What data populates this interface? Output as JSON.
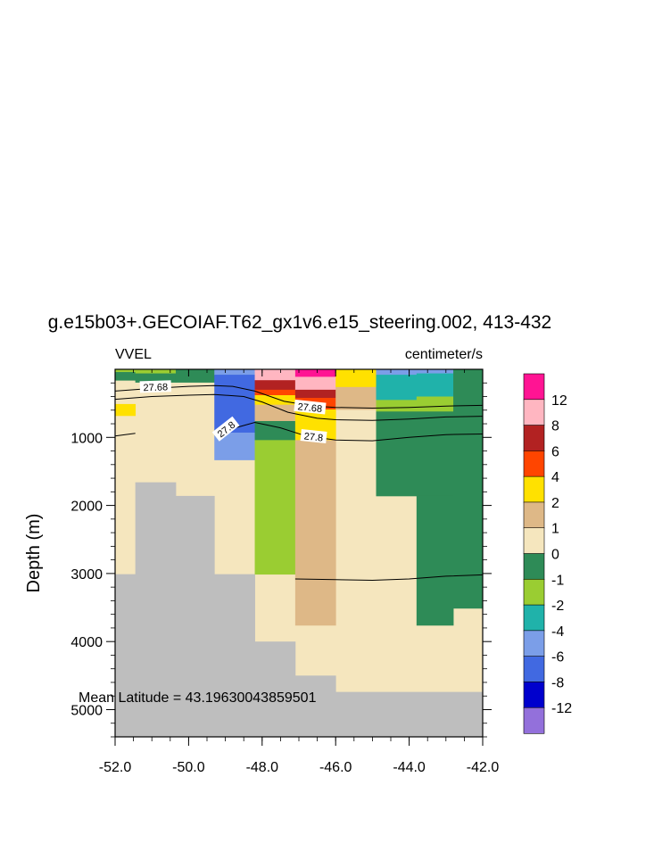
{
  "chart_data": {
    "type": "heatmap",
    "title": "g.e15b03+.GECOIAF.T62_gx1v6.e15_steering.002, 413-432",
    "left_label": "VVEL",
    "right_label": "centimeter/s",
    "ylabel": "Depth (m)",
    "xlabel": "",
    "annotation": "Mean Latitude = 43.19630043859501",
    "xlim": [
      -52.0,
      -42.0
    ],
    "ylim": [
      5400,
      0
    ],
    "x_ticks": [
      "-52.0",
      "-50.0",
      "-48.0",
      "-46.0",
      "-44.0",
      "-42.0"
    ],
    "x_tick_values": [
      -52,
      -50,
      -48,
      -46,
      -44,
      -42
    ],
    "y_ticks": [
      "1000",
      "2000",
      "3000",
      "4000",
      "5000"
    ],
    "y_tick_values": [
      1000,
      2000,
      3000,
      4000,
      5000
    ],
    "colorbar": {
      "labels": [
        "12",
        "8",
        "6",
        "4",
        "2",
        "1",
        "0",
        "-1",
        "-2",
        "-4",
        "-6",
        "-8",
        "-12"
      ],
      "colors": [
        "#ff1493",
        "#ffb6c1",
        "#b22222",
        "#ff4500",
        "#ffe100",
        "#deb887",
        "#f5e6be",
        "#2e8b57",
        "#9acd32",
        "#20b2aa",
        "#7b9ee8",
        "#4169e1",
        "#0000cd",
        "#9370db"
      ]
    },
    "land_color": "#bebebe",
    "background_color": "#f5e6be",
    "cells": [
      {
        "x0": -52.0,
        "x1": -51.45,
        "d0": 3010,
        "d1": 5400,
        "color": "#bebebe"
      },
      {
        "x0": -51.45,
        "x1": -50.35,
        "d0": 1660,
        "d1": 5400,
        "color": "#bebebe"
      },
      {
        "x0": -50.35,
        "x1": -49.3,
        "d0": 1860,
        "d1": 5400,
        "color": "#bebebe"
      },
      {
        "x0": -49.3,
        "x1": -48.2,
        "d0": 3010,
        "d1": 5400,
        "color": "#bebebe"
      },
      {
        "x0": -48.2,
        "x1": -47.1,
        "d0": 4000,
        "d1": 5400,
        "color": "#bebebe"
      },
      {
        "x0": -47.1,
        "x1": -46.0,
        "d0": 4500,
        "d1": 5400,
        "color": "#bebebe"
      },
      {
        "x0": -46.0,
        "x1": -42.0,
        "d0": 4740,
        "d1": 5400,
        "color": "#bebebe"
      },
      {
        "x0": -52.0,
        "x1": -51.45,
        "d0": 0,
        "d1": 40,
        "color": "#9acd32"
      },
      {
        "x0": -52.0,
        "x1": -51.45,
        "d0": 40,
        "d1": 160,
        "color": "#2e8b57"
      },
      {
        "x0": -52.0,
        "x1": -51.45,
        "d0": 510,
        "d1": 680,
        "color": "#ffe100"
      },
      {
        "x0": -51.45,
        "x1": -50.35,
        "d0": 0,
        "d1": 60,
        "color": "#9acd32"
      },
      {
        "x0": -51.45,
        "x1": -50.35,
        "d0": 60,
        "d1": 190,
        "color": "#2e8b57"
      },
      {
        "x0": -50.35,
        "x1": -49.3,
        "d0": 0,
        "d1": 190,
        "color": "#2e8b57"
      },
      {
        "x0": -49.3,
        "x1": -48.2,
        "d0": 0,
        "d1": 80,
        "color": "#7b9ee8"
      },
      {
        "x0": -49.3,
        "x1": -48.2,
        "d0": 80,
        "d1": 930,
        "color": "#4169e1"
      },
      {
        "x0": -49.3,
        "x1": -48.2,
        "d0": 930,
        "d1": 1330,
        "color": "#7b9ee8"
      },
      {
        "x0": -48.2,
        "x1": -47.1,
        "d0": 0,
        "d1": 160,
        "color": "#ffb6c1"
      },
      {
        "x0": -48.2,
        "x1": -47.1,
        "d0": 160,
        "d1": 300,
        "color": "#b22222"
      },
      {
        "x0": -48.2,
        "x1": -47.1,
        "d0": 300,
        "d1": 380,
        "color": "#ff4500"
      },
      {
        "x0": -48.2,
        "x1": -47.1,
        "d0": 380,
        "d1": 520,
        "color": "#ffe100"
      },
      {
        "x0": -48.2,
        "x1": -47.1,
        "d0": 520,
        "d1": 760,
        "color": "#deb887"
      },
      {
        "x0": -48.2,
        "x1": -47.1,
        "d0": 760,
        "d1": 1040,
        "color": "#2e8b57"
      },
      {
        "x0": -48.2,
        "x1": -47.1,
        "d0": 1040,
        "d1": 3010,
        "color": "#9acd32"
      },
      {
        "x0": -47.1,
        "x1": -46.0,
        "d0": 0,
        "d1": 110,
        "color": "#ff1493"
      },
      {
        "x0": -47.1,
        "x1": -46.0,
        "d0": 110,
        "d1": 300,
        "color": "#ffb6c1"
      },
      {
        "x0": -47.1,
        "x1": -46.0,
        "d0": 300,
        "d1": 420,
        "color": "#b22222"
      },
      {
        "x0": -47.1,
        "x1": -46.0,
        "d0": 420,
        "d1": 590,
        "color": "#ff4500"
      },
      {
        "x0": -47.1,
        "x1": -46.0,
        "d0": 590,
        "d1": 1040,
        "color": "#ffe100"
      },
      {
        "x0": -47.1,
        "x1": -46.0,
        "d0": 1040,
        "d1": 3760,
        "color": "#deb887"
      },
      {
        "x0": -46.0,
        "x1": -44.9,
        "d0": 0,
        "d1": 260,
        "color": "#ffe100"
      },
      {
        "x0": -46.0,
        "x1": -44.9,
        "d0": 260,
        "d1": 590,
        "color": "#deb887"
      },
      {
        "x0": -44.9,
        "x1": -43.8,
        "d0": 0,
        "d1": 80,
        "color": "#7b9ee8"
      },
      {
        "x0": -44.9,
        "x1": -43.8,
        "d0": 80,
        "d1": 450,
        "color": "#20b2aa"
      },
      {
        "x0": -44.9,
        "x1": -43.8,
        "d0": 450,
        "d1": 620,
        "color": "#9acd32"
      },
      {
        "x0": -44.9,
        "x1": -43.8,
        "d0": 620,
        "d1": 1860,
        "color": "#2e8b57"
      },
      {
        "x0": -43.8,
        "x1": -42.8,
        "d0": 0,
        "d1": 60,
        "color": "#7b9ee8"
      },
      {
        "x0": -43.8,
        "x1": -42.8,
        "d0": 60,
        "d1": 400,
        "color": "#20b2aa"
      },
      {
        "x0": -43.8,
        "x1": -42.8,
        "d0": 400,
        "d1": 620,
        "color": "#9acd32"
      },
      {
        "x0": -43.8,
        "x1": -42.8,
        "d0": 620,
        "d1": 1860,
        "color": "#2e8b57"
      },
      {
        "x0": -43.8,
        "x1": -42.8,
        "d0": 1860,
        "d1": 3760,
        "color": "#2e8b57"
      },
      {
        "x0": -42.8,
        "x1": -42.0,
        "d0": 0,
        "d1": 3510,
        "color": "#2e8b57"
      }
    ],
    "contours": [
      {
        "label": "27.68",
        "points": [
          [
            -52,
            320
          ],
          [
            -51,
            280
          ],
          [
            -50,
            250
          ],
          [
            -49.3,
            240
          ],
          [
            -48.8,
            250
          ],
          [
            -48.2,
            320
          ],
          [
            -47.4,
            470
          ],
          [
            -46.6,
            540
          ],
          [
            -46,
            560
          ],
          [
            -45,
            570
          ],
          [
            -44,
            560
          ],
          [
            -43,
            540
          ],
          [
            -42,
            530
          ]
        ]
      },
      {
        "label": "27.8",
        "points": [
          [
            -52,
            440
          ],
          [
            -51,
            400
          ],
          [
            -50,
            380
          ],
          [
            -49.3,
            370
          ],
          [
            -48.5,
            400
          ],
          [
            -48,
            480
          ],
          [
            -47.3,
            630
          ],
          [
            -46.5,
            720
          ],
          [
            -46,
            740
          ],
          [
            -45,
            750
          ],
          [
            -44,
            730
          ],
          [
            -43,
            700
          ],
          [
            -42,
            690
          ]
        ]
      },
      {
        "label": "",
        "points": [
          [
            -52,
            980
          ],
          [
            -51.45,
            940
          ]
        ]
      },
      {
        "label": "",
        "points": [
          [
            -49.3,
            940
          ],
          [
            -48.6,
            840
          ],
          [
            -48.2,
            780
          ],
          [
            -47.5,
            860
          ],
          [
            -46.8,
            980
          ],
          [
            -46,
            1040
          ],
          [
            -45,
            1050
          ],
          [
            -44,
            1000
          ],
          [
            -43,
            960
          ],
          [
            -42,
            950
          ]
        ]
      },
      {
        "label": "",
        "points": [
          [
            -47.1,
            3080
          ],
          [
            -46,
            3090
          ],
          [
            -45,
            3100
          ],
          [
            -44,
            3080
          ],
          [
            -43,
            3040
          ],
          [
            -42,
            3020
          ]
        ]
      }
    ],
    "contour_labels": [
      {
        "text": "27.68",
        "x": -50.9,
        "d": 260,
        "angle": -2
      },
      {
        "text": "27.68",
        "x": -46.7,
        "d": 560,
        "angle": 6
      },
      {
        "text": "27.8",
        "x": -48.98,
        "d": 880,
        "angle": -38
      },
      {
        "text": "27.8",
        "x": -46.6,
        "d": 990,
        "angle": 6
      }
    ]
  }
}
